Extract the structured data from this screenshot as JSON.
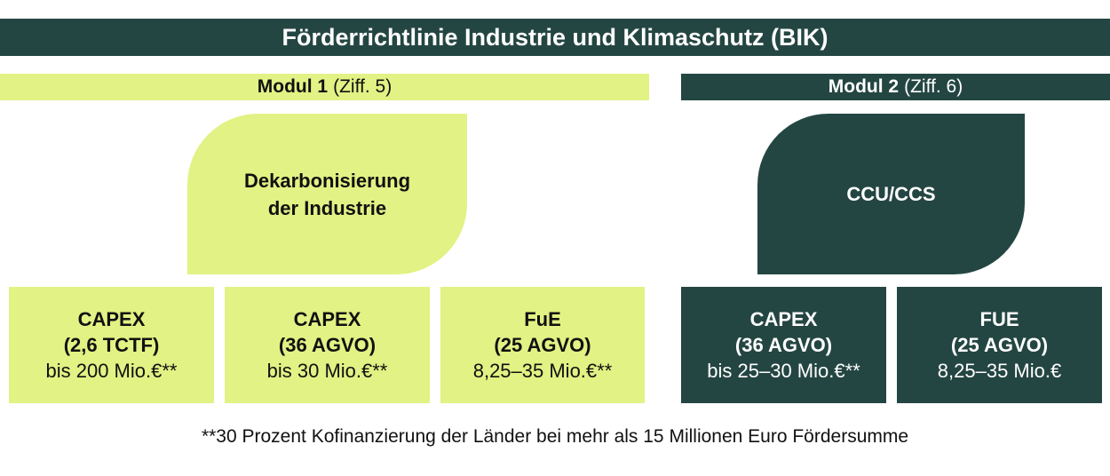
{
  "title": "Förderrichtlinie Industrie und Klimaschutz (BIK)",
  "modules": [
    {
      "name": "Modul 1",
      "ref": "(Ziff. 5)",
      "category": [
        "Dekarbonisierung",
        "der Industrie"
      ],
      "boxes": [
        {
          "line1": "CAPEX",
          "line2": "(2,6 TCTF)",
          "line3": "bis 200 Mio.€**"
        },
        {
          "line1": "CAPEX",
          "line2": "(36 AGVO)",
          "line3": "bis 30 Mio.€**"
        },
        {
          "line1": "FuE",
          "line2": "(25 AGVO)",
          "line3": "8,25–35 Mio.€**"
        }
      ]
    },
    {
      "name": "Modul 2",
      "ref": "(Ziff. 6)",
      "category": [
        "CCU/CCS"
      ],
      "boxes": [
        {
          "line1": "CAPEX",
          "line2": "(36 AGVO)",
          "line3": "bis 25–30 Mio.€**"
        },
        {
          "line1": "FUE",
          "line2": "(25 AGVO)",
          "line3": "8,25–35 Mio.€"
        }
      ]
    }
  ],
  "footnote": "**30 Prozent Kofinanzierung der Länder bei mehr als 15 Millionen Euro Fördersumme",
  "colors": {
    "dark": "#244642",
    "light": "#e2f284"
  }
}
